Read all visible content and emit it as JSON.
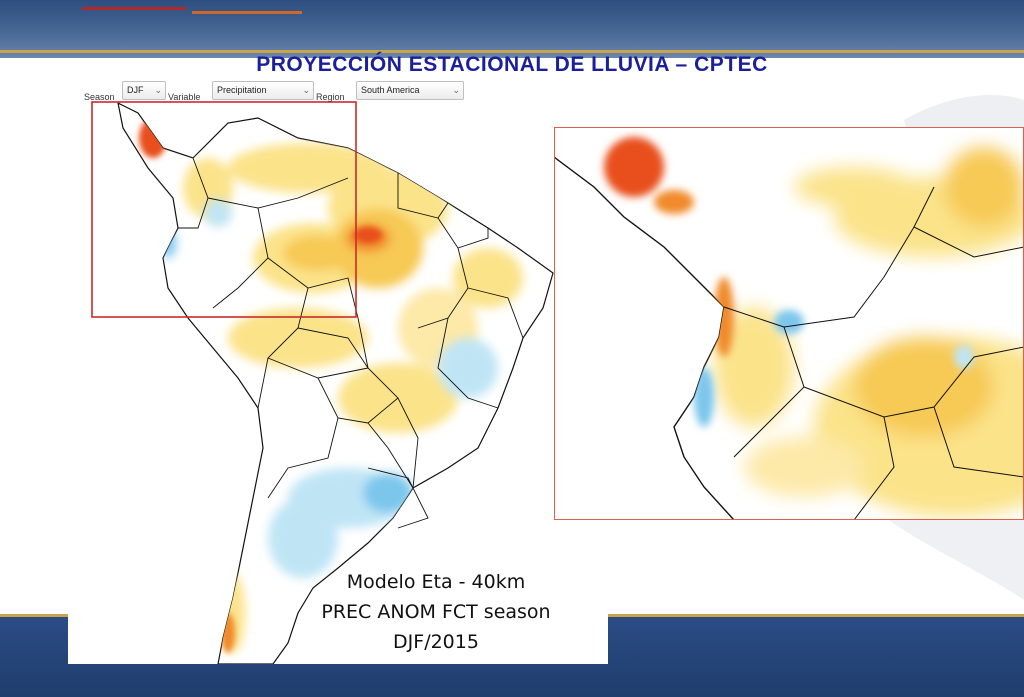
{
  "title": "PROYECCIÓN ESTACIONAL DE LLUVIA – CPTEC",
  "controls": {
    "season_label": "Season",
    "season_value": "DJF",
    "variable_label": "Variable",
    "variable_value": "Precipitation",
    "region_label": "Region",
    "region_value": "South America"
  },
  "caption": {
    "line1": "Modelo Eta - 40km",
    "line2": "PREC ANOM FCT season",
    "line3": "DJF/2015"
  },
  "colors": {
    "dry_strong": "#e8501a",
    "dry_medium": "#f4a61f",
    "dry_light": "#fbe38a",
    "wet_light": "#bfe5f5",
    "wet_medium": "#7cc6ec",
    "highlight_box": "#d0282a"
  }
}
